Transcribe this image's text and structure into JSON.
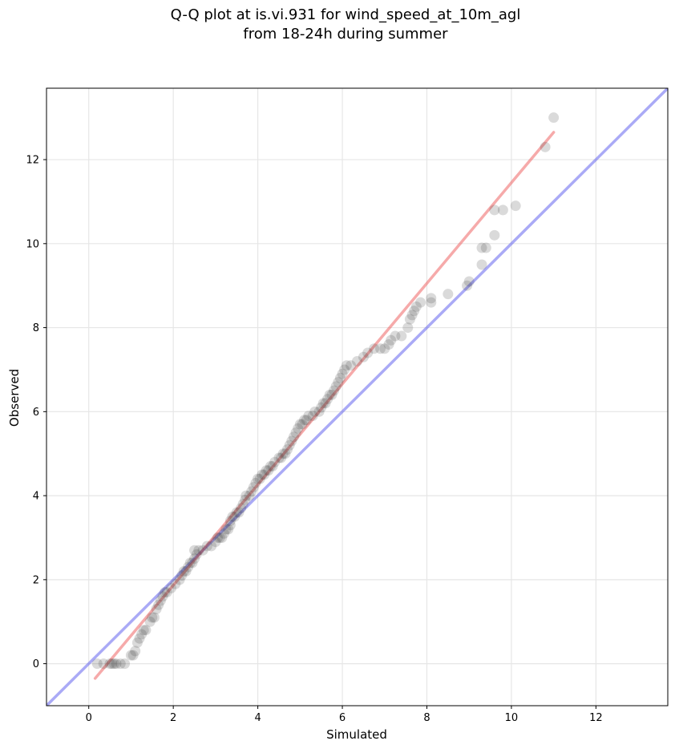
{
  "chart_data": {
    "type": "scatter",
    "title_lines": [
      "Q-Q plot at is.vi.931 for wind_speed_at_10m_agl",
      "from 18-24h during summer"
    ],
    "xlabel": "Simulated",
    "ylabel": "Observed",
    "xlim": [
      -1,
      13.7
    ],
    "ylim": [
      -1,
      13.7
    ],
    "xticks": [
      0,
      2,
      4,
      6,
      8,
      10,
      12
    ],
    "yticks": [
      0,
      2,
      4,
      6,
      8,
      10,
      12
    ],
    "grid": true,
    "colors": {
      "points": "#333333",
      "identity_line": "#5555ee",
      "fit_line": "#ee5555",
      "grid": "#e6e6e6"
    },
    "series": [
      {
        "type": "scatter",
        "points": [
          [
            0.2,
            0.0
          ],
          [
            0.35,
            0.0
          ],
          [
            0.5,
            0.0
          ],
          [
            0.55,
            0.0
          ],
          [
            0.6,
            0.0
          ],
          [
            0.65,
            0.0
          ],
          [
            0.75,
            0.0
          ],
          [
            0.85,
            0.0
          ],
          [
            1.0,
            0.2
          ],
          [
            1.05,
            0.2
          ],
          [
            1.1,
            0.3
          ],
          [
            1.15,
            0.5
          ],
          [
            1.2,
            0.6
          ],
          [
            1.25,
            0.7
          ],
          [
            1.3,
            0.8
          ],
          [
            1.35,
            0.8
          ],
          [
            1.45,
            1.0
          ],
          [
            1.5,
            1.1
          ],
          [
            1.55,
            1.1
          ],
          [
            1.6,
            1.3
          ],
          [
            1.65,
            1.4
          ],
          [
            1.7,
            1.5
          ],
          [
            1.75,
            1.6
          ],
          [
            1.8,
            1.7
          ],
          [
            1.85,
            1.7
          ],
          [
            1.95,
            1.8
          ],
          [
            2.05,
            1.9
          ],
          [
            2.15,
            2.0
          ],
          [
            2.2,
            2.1
          ],
          [
            2.25,
            2.2
          ],
          [
            2.3,
            2.2
          ],
          [
            2.35,
            2.3
          ],
          [
            2.4,
            2.4
          ],
          [
            2.45,
            2.4
          ],
          [
            2.5,
            2.5
          ],
          [
            2.55,
            2.6
          ],
          [
            2.5,
            2.7
          ],
          [
            2.6,
            2.7
          ],
          [
            2.7,
            2.7
          ],
          [
            2.8,
            2.8
          ],
          [
            2.9,
            2.8
          ],
          [
            3.0,
            2.9
          ],
          [
            3.05,
            3.0
          ],
          [
            3.1,
            3.0
          ],
          [
            3.15,
            3.0
          ],
          [
            3.2,
            3.1
          ],
          [
            3.25,
            3.2
          ],
          [
            3.3,
            3.2
          ],
          [
            3.35,
            3.3
          ],
          [
            3.35,
            3.4
          ],
          [
            3.4,
            3.5
          ],
          [
            3.45,
            3.5
          ],
          [
            3.5,
            3.6
          ],
          [
            3.55,
            3.6
          ],
          [
            3.6,
            3.7
          ],
          [
            3.65,
            3.8
          ],
          [
            3.7,
            3.9
          ],
          [
            3.72,
            4.0
          ],
          [
            3.8,
            4.0
          ],
          [
            3.85,
            4.1
          ],
          [
            3.9,
            4.2
          ],
          [
            3.95,
            4.3
          ],
          [
            4.0,
            4.4
          ],
          [
            4.05,
            4.4
          ],
          [
            4.1,
            4.5
          ],
          [
            4.15,
            4.5
          ],
          [
            4.2,
            4.6
          ],
          [
            4.25,
            4.6
          ],
          [
            4.3,
            4.7
          ],
          [
            4.35,
            4.7
          ],
          [
            4.4,
            4.8
          ],
          [
            4.5,
            4.9
          ],
          [
            4.55,
            4.9
          ],
          [
            4.6,
            5.0
          ],
          [
            4.65,
            5.0
          ],
          [
            4.7,
            5.1
          ],
          [
            4.75,
            5.2
          ],
          [
            4.8,
            5.3
          ],
          [
            4.85,
            5.4
          ],
          [
            4.9,
            5.5
          ],
          [
            4.95,
            5.6
          ],
          [
            5.0,
            5.7
          ],
          [
            5.05,
            5.7
          ],
          [
            5.1,
            5.8
          ],
          [
            5.15,
            5.8
          ],
          [
            5.2,
            5.9
          ],
          [
            5.3,
            5.9
          ],
          [
            5.35,
            6.0
          ],
          [
            5.45,
            6.0
          ],
          [
            5.5,
            6.1
          ],
          [
            5.55,
            6.2
          ],
          [
            5.6,
            6.2
          ],
          [
            5.65,
            6.3
          ],
          [
            5.7,
            6.4
          ],
          [
            5.75,
            6.4
          ],
          [
            5.8,
            6.5
          ],
          [
            5.85,
            6.6
          ],
          [
            5.9,
            6.7
          ],
          [
            5.95,
            6.8
          ],
          [
            6.0,
            6.9
          ],
          [
            6.05,
            7.0
          ],
          [
            6.1,
            7.1
          ],
          [
            6.2,
            7.1
          ],
          [
            6.35,
            7.2
          ],
          [
            6.5,
            7.3
          ],
          [
            6.6,
            7.4
          ],
          [
            6.75,
            7.5
          ],
          [
            6.9,
            7.5
          ],
          [
            7.0,
            7.5
          ],
          [
            7.1,
            7.6
          ],
          [
            7.15,
            7.7
          ],
          [
            7.25,
            7.8
          ],
          [
            7.4,
            7.8
          ],
          [
            7.55,
            8.0
          ],
          [
            7.6,
            8.2
          ],
          [
            7.65,
            8.3
          ],
          [
            7.7,
            8.4
          ],
          [
            7.75,
            8.5
          ],
          [
            7.85,
            8.6
          ],
          [
            8.1,
            8.6
          ],
          [
            8.1,
            8.7
          ],
          [
            8.5,
            8.8
          ],
          [
            8.95,
            9.0
          ],
          [
            9.0,
            9.1
          ],
          [
            9.3,
            9.5
          ],
          [
            9.3,
            9.9
          ],
          [
            9.4,
            9.9
          ],
          [
            9.6,
            10.2
          ],
          [
            9.6,
            10.8
          ],
          [
            9.8,
            10.8
          ],
          [
            10.1,
            10.9
          ],
          [
            10.8,
            12.3
          ],
          [
            11.0,
            13.0
          ]
        ]
      },
      {
        "type": "line",
        "points": [
          [
            -1,
            -1
          ],
          [
            13.7,
            13.7
          ]
        ]
      },
      {
        "type": "line",
        "points": [
          [
            0.15,
            -0.35
          ],
          [
            11.0,
            12.65
          ]
        ]
      }
    ]
  }
}
